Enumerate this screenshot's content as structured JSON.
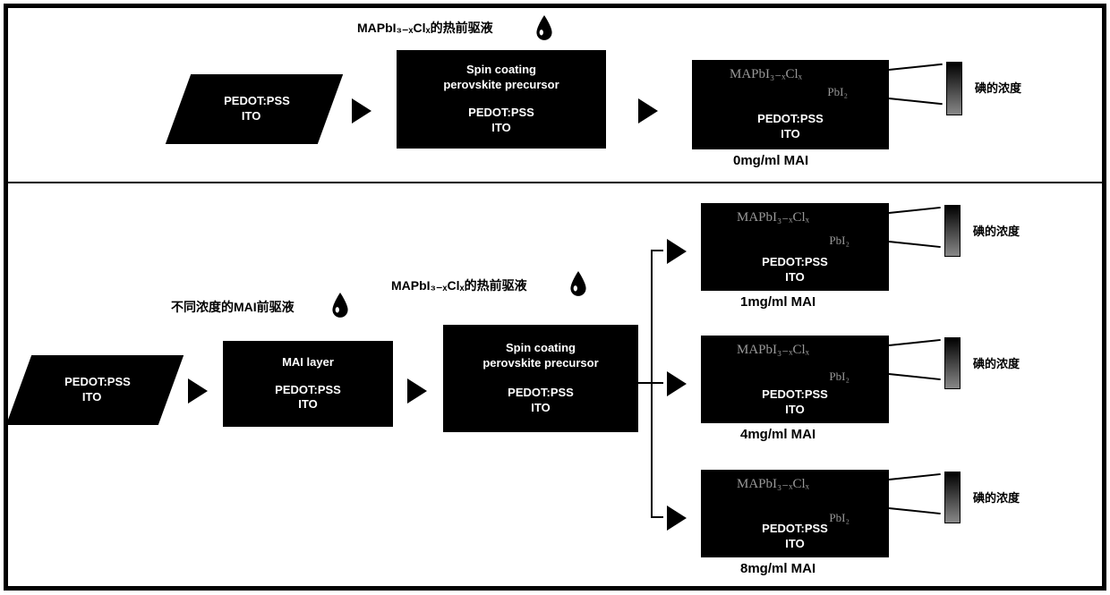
{
  "common": {
    "pedot": "PEDOT:PSS",
    "ito": "ITO",
    "spin1": "Spin coating",
    "spin2": "perovskite precursor",
    "perov": "MAPbI₃₋ₓClₓ",
    "pbi2": "PbI₂",
    "conc_label": "碘的浓度",
    "hot_precursor": "MAPbI₃₋ₓClₓ的热前驱液"
  },
  "top": {
    "final_caption": "0mg/ml MAI"
  },
  "bottom": {
    "mai_precursor_label": "不同浓度的MAI前驱液",
    "mai_layer": "MAI layer",
    "captions": [
      "1mg/ml MAI",
      "4mg/ml MAI",
      "8mg/ml MAI"
    ],
    "pbi2_offsets": [
      12,
      16,
      24
    ]
  },
  "style": {
    "box_bg": "#000000",
    "box_fg": "#ffffff",
    "text": "#000000",
    "faded": "#999999",
    "grad_top": "#000000",
    "grad_bottom": "#888888"
  }
}
